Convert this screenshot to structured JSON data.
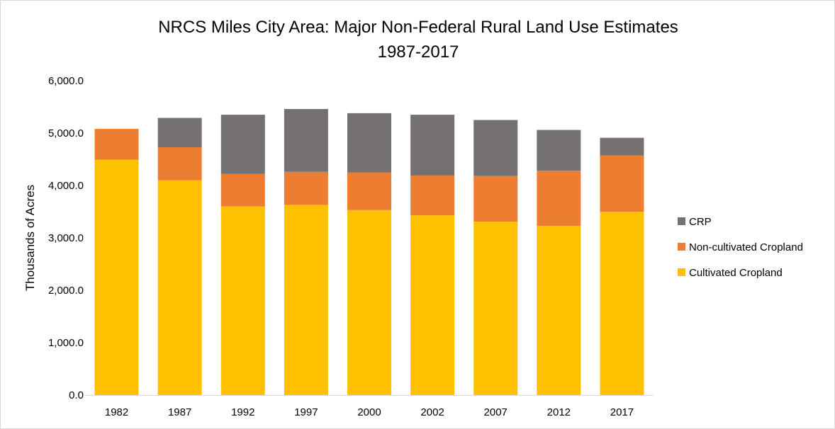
{
  "chart_data": {
    "type": "bar",
    "stacked": true,
    "title": "NRCS Miles City Area: Major Non-Federal Rural Land Use Estimates",
    "subtitle": "1987-2017",
    "xlabel": "",
    "ylabel": "Thousands of Acres",
    "ylim": [
      0,
      6000
    ],
    "yticks": [
      "0.0",
      "1,000.0",
      "2,000.0",
      "3,000.0",
      "4,000.0",
      "5,000.0",
      "6,000.0"
    ],
    "categories": [
      "1982",
      "1987",
      "1992",
      "1997",
      "2000",
      "2002",
      "2007",
      "2012",
      "2017"
    ],
    "series": [
      {
        "name": "Cultivated Cropland",
        "color": "#FFC000",
        "values": [
          4490,
          4100,
          3600,
          3630,
          3530,
          3430,
          3310,
          3230,
          3500
        ]
      },
      {
        "name": "Non-cultivated Cropland",
        "color": "#ED7D31",
        "values": [
          590,
          630,
          620,
          630,
          720,
          760,
          870,
          1050,
          1070
        ]
      },
      {
        "name": "CRP",
        "color": "#767171",
        "values": [
          0,
          560,
          1130,
          1200,
          1130,
          1160,
          1070,
          780,
          340
        ]
      }
    ],
    "legend": [
      "CRP",
      "Non-cultivated Cropland",
      "Cultivated Cropland"
    ],
    "legend_position": "right",
    "grid": false
  }
}
